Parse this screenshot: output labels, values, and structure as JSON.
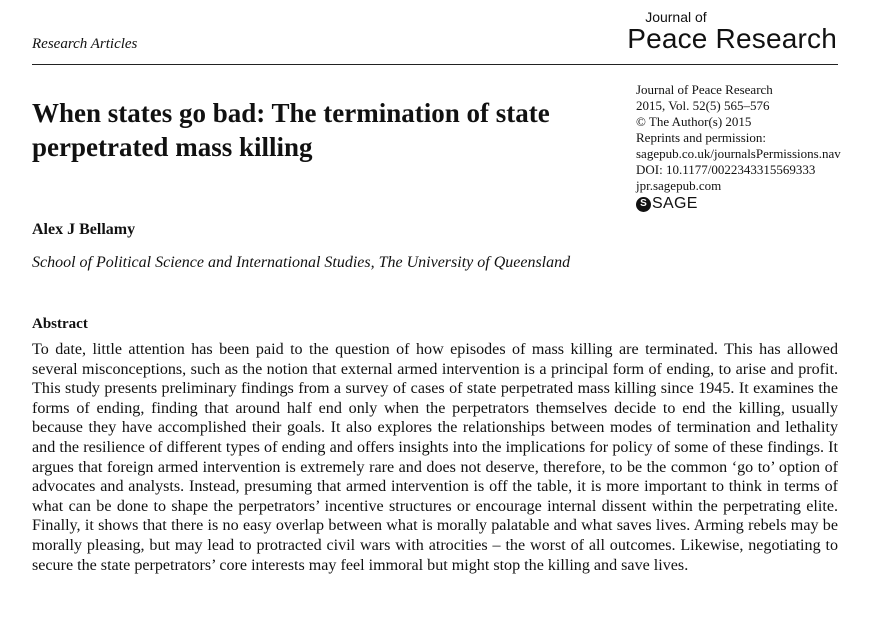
{
  "header": {
    "section": "Research Articles",
    "journal_logo_small": "Journal of",
    "journal_logo_big": "Peace Research"
  },
  "article": {
    "title": "When states go bad: The termination of state perpetrated mass killing",
    "author": "Alex J Bellamy",
    "affiliation": "School of Political Science and International Studies, The University of Queensland"
  },
  "meta": {
    "lines": [
      "Journal of Peace Research",
      "2015, Vol. 52(5) 565–576",
      "© The Author(s) 2015",
      "Reprints and permission:",
      "sagepub.co.uk/journalsPermissions.nav",
      "DOI: 10.1177/0022343315569333",
      "jpr.sagepub.com"
    ],
    "publisher": "SAGE",
    "publisher_icon": "S"
  },
  "abstract": {
    "heading": "Abstract",
    "text": "To date, little attention has been paid to the question of how episodes of mass killing are terminated. This has allowed several misconceptions, such as the notion that external armed intervention is a principal form of ending, to arise and profit. This study presents preliminary findings from a survey of cases of state perpetrated mass killing since 1945. It examines the forms of ending, finding that around half end only when the perpetrators themselves decide to end the killing, usually because they have accomplished their goals. It also explores the relationships between modes of termination and lethality and the resilience of different types of ending and offers insights into the implications for policy of some of these findings. It argues that foreign armed intervention is extremely rare and does not deserve, therefore, to be the common ‘go to’ option of advocates and analysts. Instead, presuming that armed intervention is off the table, it is more important to think in terms of what can be done to shape the perpetrators’ incentive structures or encourage internal dissent within the perpetrating elite. Finally, it shows that there is no easy overlap between what is morally palatable and what saves lives. Arming rebels may be morally pleasing, but may lead to protracted civil wars with atrocities – the worst of all outcomes. Likewise, negotiating to secure the state perpetrators’ core interests may feel immoral but might stop the killing and save lives."
  }
}
